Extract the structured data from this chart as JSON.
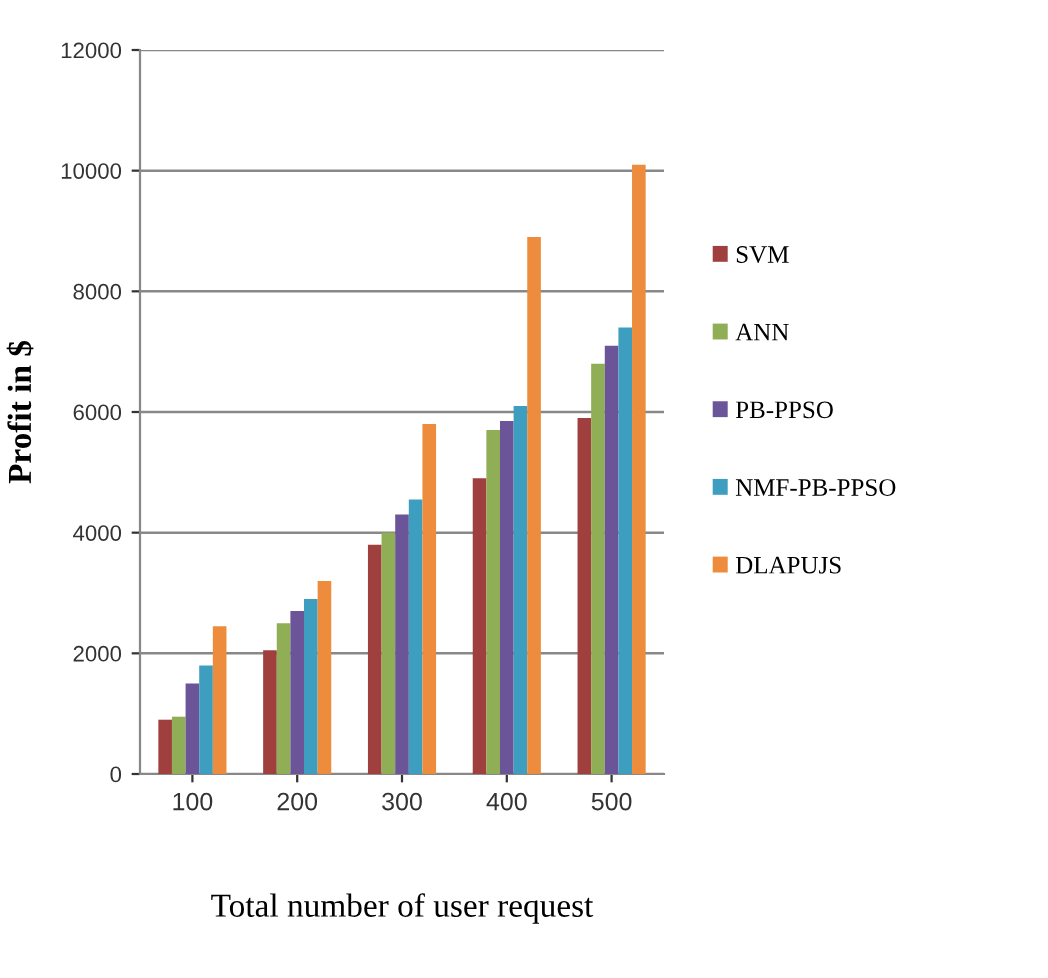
{
  "chart_data": {
    "type": "bar",
    "xlabel": "Total number of user request",
    "ylabel": "Profit in $",
    "categories": [
      "100",
      "200",
      "300",
      "400",
      "500"
    ],
    "series": [
      {
        "name": "SVM",
        "color": "#a0403e",
        "values": [
          900,
          2050,
          3800,
          4900,
          5900
        ]
      },
      {
        "name": "ANN",
        "color": "#8fae55",
        "values": [
          950,
          2500,
          4000,
          5700,
          6800
        ]
      },
      {
        "name": "PB-PPSO",
        "color": "#6b5497",
        "values": [
          1500,
          2700,
          4300,
          5850,
          7100
        ]
      },
      {
        "name": "NMF-PB-PPSO",
        "color": "#3e9ec0",
        "values": [
          1800,
          2900,
          4550,
          6100,
          7400
        ]
      },
      {
        "name": "DLAPUJS",
        "color": "#ec8c3c",
        "values": [
          2450,
          3200,
          5800,
          8900,
          10100
        ]
      }
    ],
    "ylim": [
      0,
      12000
    ],
    "yticks": [
      0,
      2000,
      4000,
      6000,
      8000,
      10000,
      12000
    ],
    "grid": "y",
    "legend": "right"
  }
}
